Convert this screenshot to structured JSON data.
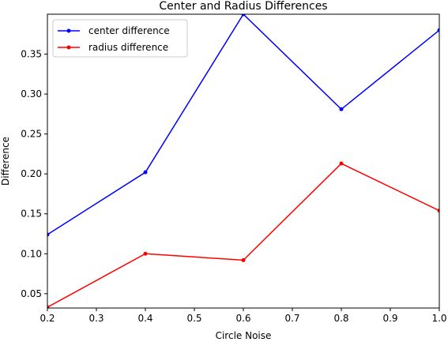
{
  "chart_data": {
    "type": "line",
    "title": "Center and Radius Differences",
    "xlabel": "Circle Noise",
    "ylabel": "Difference",
    "xlim": [
      0.2,
      1.0
    ],
    "ylim": [
      0.032,
      0.4
    ],
    "grid": false,
    "legend_position": "top-left",
    "x": [
      0.2,
      0.4,
      0.6,
      0.8,
      1.0
    ],
    "x_ticks": [
      0.2,
      0.3,
      0.4,
      0.5,
      0.6,
      0.7,
      0.8,
      0.9,
      1.0
    ],
    "x_tick_labels": [
      "0.2",
      "0.3",
      "0.4",
      "0.5",
      "0.6",
      "0.7",
      "0.8",
      "0.9",
      "1.0"
    ],
    "y_ticks": [
      0.05,
      0.1,
      0.15,
      0.2,
      0.25,
      0.3,
      0.35
    ],
    "y_tick_labels": [
      "0.05",
      "0.10",
      "0.15",
      "0.20",
      "0.25",
      "0.30",
      "0.35"
    ],
    "series": [
      {
        "name": "center difference",
        "color": "#0000ff",
        "values": [
          0.124,
          0.202,
          0.4,
          0.281,
          0.38
        ]
      },
      {
        "name": "radius difference",
        "color": "#ff0000",
        "values": [
          0.033,
          0.1,
          0.092,
          0.213,
          0.154
        ]
      }
    ]
  }
}
